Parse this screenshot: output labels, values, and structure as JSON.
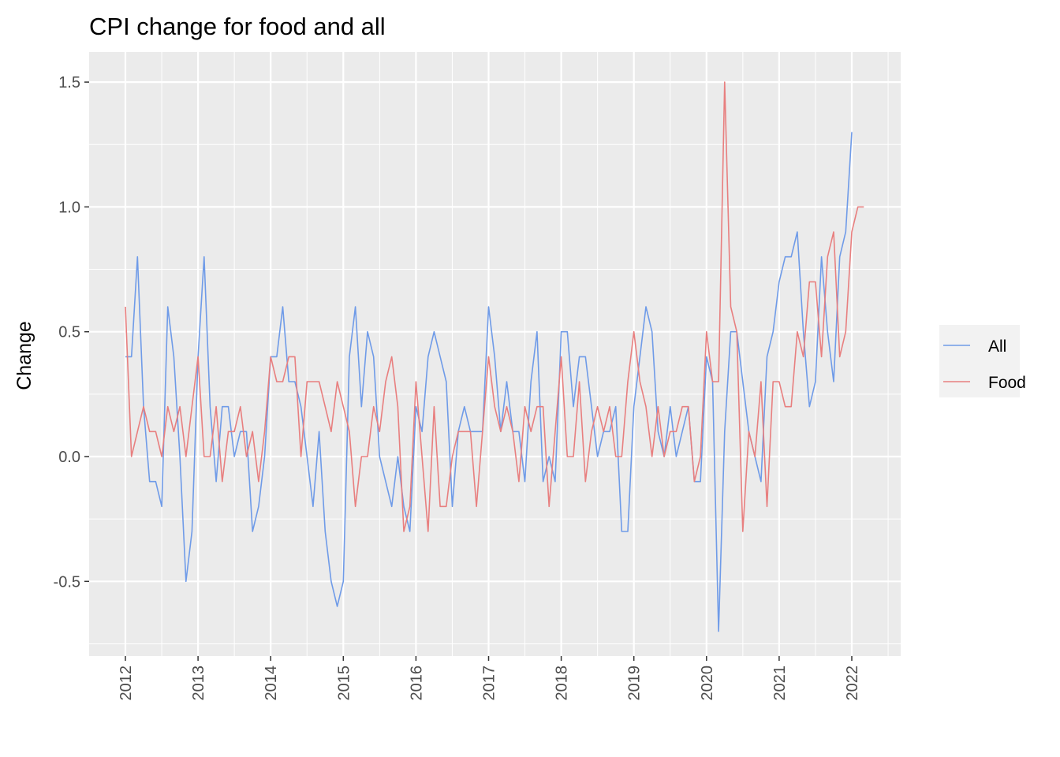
{
  "chart_data": {
    "type": "line",
    "title": "CPI change for food and all",
    "xlabel": "",
    "ylabel": "Change",
    "x_start": "2012-01",
    "x_frequency": "monthly",
    "x_ticks": [
      "2012",
      "2013",
      "2014",
      "2015",
      "2016",
      "2017",
      "2018",
      "2019",
      "2020",
      "2021",
      "2022"
    ],
    "y_ticks": [
      "-0.5",
      "0.0",
      "0.5",
      "1.0",
      "1.5"
    ],
    "ylim": [
      -0.8,
      1.6
    ],
    "grid": true,
    "legend_position": "right",
    "series": [
      {
        "name": "All",
        "color": "#6f9be8",
        "values": [
          0.4,
          0.4,
          0.8,
          0.2,
          -0.1,
          -0.1,
          -0.2,
          0.6,
          0.4,
          0.0,
          -0.5,
          -0.3,
          0.4,
          0.8,
          0.2,
          -0.1,
          0.2,
          0.2,
          0.0,
          0.1,
          0.1,
          -0.3,
          -0.2,
          0.0,
          0.4,
          0.4,
          0.6,
          0.3,
          0.3,
          0.2,
          0.0,
          -0.2,
          0.1,
          -0.3,
          -0.5,
          -0.6,
          -0.5,
          0.4,
          0.6,
          0.2,
          0.5,
          0.4,
          0.0,
          -0.1,
          -0.2,
          0.0,
          -0.2,
          -0.3,
          0.2,
          0.1,
          0.4,
          0.5,
          0.4,
          0.3,
          -0.2,
          0.1,
          0.2,
          0.1,
          0.1,
          0.1,
          0.6,
          0.4,
          0.1,
          0.3,
          0.1,
          0.1,
          -0.1,
          0.3,
          0.5,
          -0.1,
          0.0,
          -0.1,
          0.5,
          0.5,
          0.2,
          0.4,
          0.4,
          0.2,
          0.0,
          0.1,
          0.1,
          0.2,
          -0.3,
          -0.3,
          0.2,
          0.4,
          0.6,
          0.5,
          0.1,
          0.0,
          0.2,
          0.0,
          0.1,
          0.2,
          -0.1,
          -0.1,
          0.4,
          0.3,
          -0.7,
          0.1,
          0.5,
          0.5,
          0.3,
          0.1,
          0.0,
          -0.1,
          0.4,
          0.5,
          0.7,
          0.8,
          0.8,
          0.9,
          0.5,
          0.2,
          0.3,
          0.8,
          0.5,
          0.3,
          0.8,
          0.9,
          1.3
        ]
      },
      {
        "name": "Food",
        "color": "#e87f7f",
        "values": [
          0.6,
          0.0,
          0.1,
          0.2,
          0.1,
          0.1,
          0.0,
          0.2,
          0.1,
          0.2,
          0.0,
          0.2,
          0.4,
          0.0,
          0.0,
          0.2,
          -0.1,
          0.1,
          0.1,
          0.2,
          0.0,
          0.1,
          -0.1,
          0.1,
          0.4,
          0.3,
          0.3,
          0.4,
          0.4,
          0.0,
          0.3,
          0.3,
          0.3,
          0.2,
          0.1,
          0.3,
          0.2,
          0.1,
          -0.2,
          0.0,
          0.0,
          0.2,
          0.1,
          0.3,
          0.4,
          0.2,
          -0.3,
          -0.2,
          0.3,
          0.0,
          -0.3,
          0.2,
          -0.2,
          -0.2,
          0.0,
          0.1,
          0.1,
          0.1,
          -0.2,
          0.1,
          0.4,
          0.2,
          0.1,
          0.2,
          0.1,
          -0.1,
          0.2,
          0.1,
          0.2,
          0.2,
          -0.2,
          0.1,
          0.4,
          0.0,
          0.0,
          0.3,
          -0.1,
          0.1,
          0.2,
          0.1,
          0.2,
          0.0,
          0.0,
          0.3,
          0.5,
          0.3,
          0.2,
          0.0,
          0.2,
          0.0,
          0.1,
          0.1,
          0.2,
          0.2,
          -0.1,
          0.0,
          0.5,
          0.3,
          0.3,
          1.5,
          0.6,
          0.5,
          -0.3,
          0.1,
          0.0,
          0.3,
          -0.2,
          0.3,
          0.3,
          0.2,
          0.2,
          0.5,
          0.4,
          0.7,
          0.7,
          0.4,
          0.8,
          0.9,
          0.4,
          0.5,
          0.9,
          1.0,
          1.0
        ]
      }
    ]
  }
}
